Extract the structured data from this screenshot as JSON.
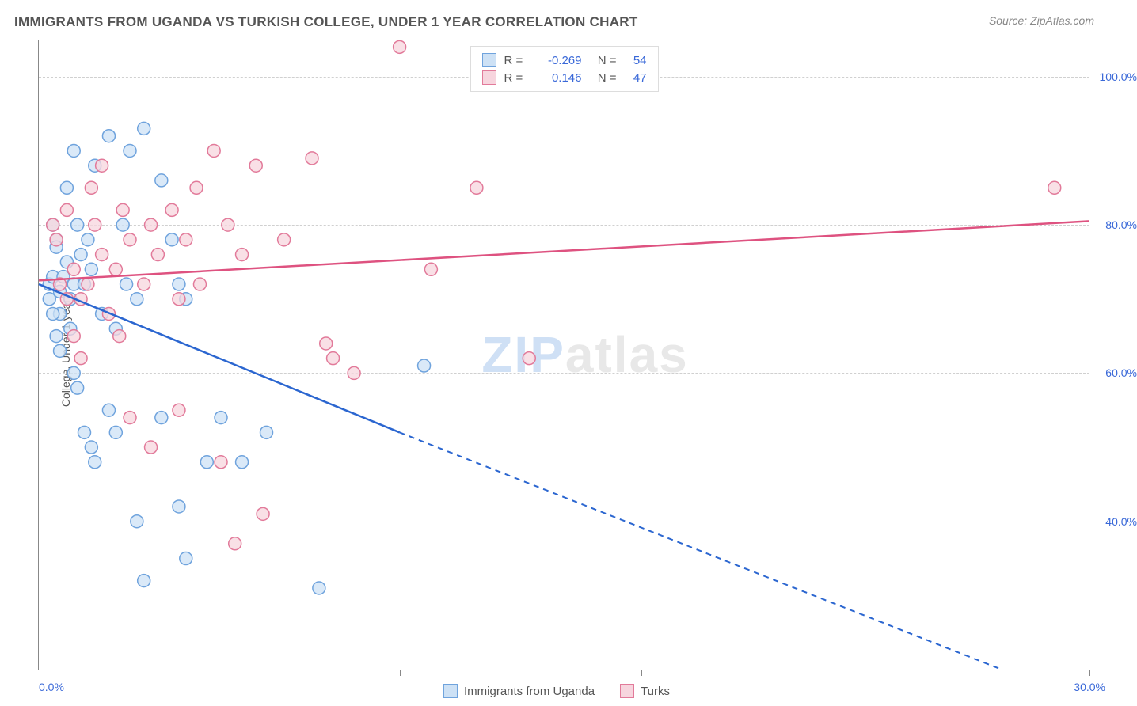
{
  "title": "IMMIGRANTS FROM UGANDA VS TURKISH COLLEGE, UNDER 1 YEAR CORRELATION CHART",
  "source": "Source: ZipAtlas.com",
  "watermark_a": "ZIP",
  "watermark_b": "atlas",
  "y_axis_title": "College, Under 1 year",
  "chart": {
    "type": "scatter",
    "xlim": [
      0,
      30
    ],
    "ylim": [
      20,
      105
    ],
    "x_left_label": "0.0%",
    "x_right_label": "30.0%",
    "x_ticks": [
      3.5,
      10.3,
      17.2,
      24,
      30
    ],
    "y_gridlines": [
      {
        "v": 40,
        "label": "40.0%"
      },
      {
        "v": 60,
        "label": "60.0%"
      },
      {
        "v": 80,
        "label": "80.0%"
      },
      {
        "v": 100,
        "label": "100.0%"
      }
    ],
    "marker_radius": 8,
    "series": [
      {
        "name": "Immigrants from Uganda",
        "fill": "#cde1f5",
        "stroke": "#6fa3dd",
        "trend_color": "#2b66d0",
        "R": "-0.269",
        "N": "54",
        "trend": {
          "x1": 0,
          "y1": 72,
          "x2_solid": 10.3,
          "y2_solid": 52,
          "x2_dash": 27.5,
          "y2_dash": 20
        },
        "points": [
          [
            0.3,
            72
          ],
          [
            0.3,
            70
          ],
          [
            0.4,
            73
          ],
          [
            0.5,
            78
          ],
          [
            0.4,
            80
          ],
          [
            0.5,
            77
          ],
          [
            0.6,
            68
          ],
          [
            0.6,
            71
          ],
          [
            0.7,
            73
          ],
          [
            0.8,
            75
          ],
          [
            0.9,
            70
          ],
          [
            1.0,
            72
          ],
          [
            1.2,
            76
          ],
          [
            1.3,
            72
          ],
          [
            1.1,
            80
          ],
          [
            1.4,
            78
          ],
          [
            1.6,
            88
          ],
          [
            2.0,
            92
          ],
          [
            2.4,
            80
          ],
          [
            2.6,
            90
          ],
          [
            3.0,
            93
          ],
          [
            3.5,
            86
          ],
          [
            3.8,
            78
          ],
          [
            4.0,
            72
          ],
          [
            4.2,
            70
          ],
          [
            2.5,
            72
          ],
          [
            2.8,
            70
          ],
          [
            1.0,
            60
          ],
          [
            1.1,
            58
          ],
          [
            1.3,
            52
          ],
          [
            1.5,
            50
          ],
          [
            1.6,
            48
          ],
          [
            2.0,
            55
          ],
          [
            2.2,
            52
          ],
          [
            3.5,
            54
          ],
          [
            5.2,
            54
          ],
          [
            5.8,
            48
          ],
          [
            6.5,
            52
          ],
          [
            4.8,
            48
          ],
          [
            4.2,
            35
          ],
          [
            4.0,
            42
          ],
          [
            2.8,
            40
          ],
          [
            3.0,
            32
          ],
          [
            8.0,
            31
          ],
          [
            11.0,
            61
          ],
          [
            1.0,
            90
          ],
          [
            0.8,
            85
          ],
          [
            0.5,
            65
          ],
          [
            0.6,
            63
          ],
          [
            0.4,
            68
          ],
          [
            1.8,
            68
          ],
          [
            2.2,
            66
          ],
          [
            1.5,
            74
          ],
          [
            0.9,
            66
          ]
        ]
      },
      {
        "name": "Turks",
        "fill": "#f7d5de",
        "stroke": "#e27a9a",
        "trend_color": "#de5280",
        "R": "0.146",
        "N": "47",
        "trend": {
          "x1": 0,
          "y1": 72.5,
          "x2_solid": 30,
          "y2_solid": 80.5,
          "x2_dash": 30,
          "y2_dash": 80.5
        },
        "points": [
          [
            0.4,
            80
          ],
          [
            0.5,
            78
          ],
          [
            0.8,
            82
          ],
          [
            1.0,
            74
          ],
          [
            1.2,
            70
          ],
          [
            1.4,
            72
          ],
          [
            1.6,
            80
          ],
          [
            1.8,
            76
          ],
          [
            2.2,
            74
          ],
          [
            2.4,
            82
          ],
          [
            2.6,
            78
          ],
          [
            3.0,
            72
          ],
          [
            3.2,
            80
          ],
          [
            3.4,
            76
          ],
          [
            3.8,
            82
          ],
          [
            4.0,
            70
          ],
          [
            4.2,
            78
          ],
          [
            4.6,
            72
          ],
          [
            5.0,
            90
          ],
          [
            5.4,
            80
          ],
          [
            5.8,
            76
          ],
          [
            6.2,
            88
          ],
          [
            7.0,
            78
          ],
          [
            7.8,
            89
          ],
          [
            8.2,
            64
          ],
          [
            8.4,
            62
          ],
          [
            9.0,
            60
          ],
          [
            11.2,
            74
          ],
          [
            12.5,
            85
          ],
          [
            14.0,
            62
          ],
          [
            29.0,
            85
          ],
          [
            10.3,
            104
          ],
          [
            2.0,
            68
          ],
          [
            2.3,
            65
          ],
          [
            2.6,
            54
          ],
          [
            3.2,
            50
          ],
          [
            4.0,
            55
          ],
          [
            5.2,
            48
          ],
          [
            5.6,
            37
          ],
          [
            6.4,
            41
          ],
          [
            1.0,
            65
          ],
          [
            1.2,
            62
          ],
          [
            0.6,
            72
          ],
          [
            0.8,
            70
          ],
          [
            1.5,
            85
          ],
          [
            1.8,
            88
          ],
          [
            4.5,
            85
          ]
        ]
      }
    ]
  },
  "legend_bottom": [
    {
      "label": "Immigrants from Uganda",
      "fill": "#cde1f5",
      "stroke": "#6fa3dd"
    },
    {
      "label": "Turks",
      "fill": "#f7d5de",
      "stroke": "#e27a9a"
    }
  ]
}
